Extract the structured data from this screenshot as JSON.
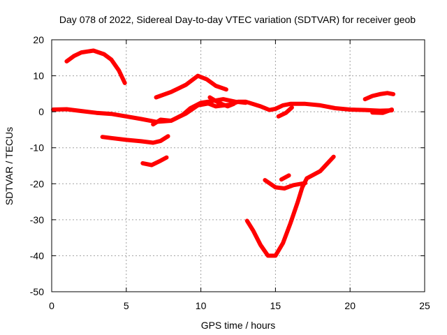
{
  "chart_data": {
    "type": "line",
    "title": "Day 078 of 2022, Sidereal Day-to-day VTEC variation (SDTVAR) for receiver geob",
    "xlabel": "GPS time / hours",
    "ylabel": "SDTVAR / TECUs",
    "xlim": [
      0,
      25
    ],
    "ylim": [
      -50,
      20
    ],
    "xticks": [
      0,
      5,
      10,
      15,
      20,
      25
    ],
    "yticks": [
      -50,
      -40,
      -30,
      -20,
      -10,
      0,
      10,
      20
    ],
    "grid": true,
    "legend": "none",
    "color": "#ff0000",
    "series": [
      {
        "values": [
          [
            0.1,
            0.6
          ],
          [
            1,
            0.7
          ],
          [
            2,
            0.2
          ],
          [
            3,
            -0.3
          ],
          [
            4,
            -0.6
          ],
          [
            5,
            -1.3
          ],
          [
            6,
            -2
          ],
          [
            7,
            -2.8
          ],
          [
            8,
            -2.5
          ],
          [
            9,
            -0.5
          ],
          [
            9.8,
            1.8
          ],
          [
            10.5,
            2.3
          ],
          [
            11,
            1.5
          ],
          [
            12,
            2
          ],
          [
            12.5,
            2.8
          ],
          [
            13,
            2.8
          ],
          [
            14,
            1.5
          ],
          [
            14.6,
            0.5
          ],
          [
            15,
            0.8
          ],
          [
            15.5,
            1.8
          ],
          [
            16,
            2.2
          ],
          [
            17,
            2.2
          ],
          [
            18,
            1.8
          ],
          [
            19,
            1
          ],
          [
            20,
            0.6
          ],
          [
            21,
            0.5
          ],
          [
            22,
            0.3
          ],
          [
            22.8,
            0.4
          ]
        ]
      },
      {
        "values": [
          [
            1,
            14
          ],
          [
            1.5,
            15.5
          ],
          [
            2,
            16.5
          ],
          [
            2.8,
            17
          ],
          [
            3.5,
            16
          ],
          [
            4,
            14.5
          ],
          [
            4.5,
            11.5
          ],
          [
            4.9,
            8
          ]
        ]
      },
      {
        "values": [
          [
            6.8,
            -3.5
          ],
          [
            7.3,
            -2.2
          ],
          [
            8,
            -2.5
          ],
          [
            8.8,
            -0.8
          ],
          [
            9.3,
            1
          ],
          [
            10,
            2.5
          ],
          [
            10.8,
            3
          ],
          [
            11.5,
            3.5
          ],
          [
            12.3,
            2.8
          ],
          [
            13,
            2.5
          ]
        ]
      },
      {
        "values": [
          [
            3.4,
            -7
          ],
          [
            4,
            -7.3
          ],
          [
            5,
            -7.8
          ],
          [
            6,
            -8.2
          ],
          [
            6.8,
            -8.6
          ],
          [
            7.3,
            -8.1
          ],
          [
            7.8,
            -6.8
          ]
        ]
      },
      {
        "values": [
          [
            6.1,
            -14.3
          ],
          [
            6.7,
            -14.8
          ],
          [
            7.3,
            -13.6
          ],
          [
            7.7,
            -12.7
          ]
        ]
      },
      {
        "values": [
          [
            7,
            4
          ],
          [
            8,
            5.5
          ],
          [
            9,
            7.5
          ],
          [
            9.8,
            10
          ],
          [
            10.4,
            9
          ],
          [
            11,
            7.2
          ],
          [
            11.7,
            6.2
          ]
        ]
      },
      {
        "values": [
          [
            10.6,
            4
          ],
          [
            11.2,
            2.5
          ],
          [
            11.8,
            1.5
          ],
          [
            12.2,
            2.2
          ]
        ]
      },
      {
        "values": [
          [
            13.1,
            -30.3
          ],
          [
            13.5,
            -33
          ],
          [
            14,
            -37
          ],
          [
            14.5,
            -40
          ],
          [
            15,
            -40
          ],
          [
            15.5,
            -36.5
          ],
          [
            16,
            -31
          ],
          [
            16.5,
            -25
          ],
          [
            16.8,
            -21
          ],
          [
            17.1,
            -18.5
          ],
          [
            18,
            -16.5
          ],
          [
            18.9,
            -12.5
          ]
        ]
      },
      {
        "values": [
          [
            14.3,
            -19
          ],
          [
            15,
            -21
          ],
          [
            15.6,
            -21.3
          ],
          [
            16.2,
            -20.4
          ],
          [
            17,
            -19.8
          ]
        ]
      },
      {
        "values": [
          [
            15.4,
            -18.8
          ],
          [
            15.9,
            -17.7
          ]
        ]
      },
      {
        "values": [
          [
            15.2,
            -1.3
          ],
          [
            15.7,
            -0.3
          ],
          [
            16.1,
            1.2
          ]
        ]
      },
      {
        "values": [
          [
            21,
            3.5
          ],
          [
            21.5,
            4.4
          ],
          [
            22,
            4.9
          ],
          [
            22.5,
            5.2
          ],
          [
            22.9,
            4.9
          ]
        ]
      },
      {
        "values": [
          [
            21.5,
            -0.2
          ],
          [
            22.2,
            -0.3
          ],
          [
            22.8,
            0.6
          ]
        ]
      }
    ]
  }
}
